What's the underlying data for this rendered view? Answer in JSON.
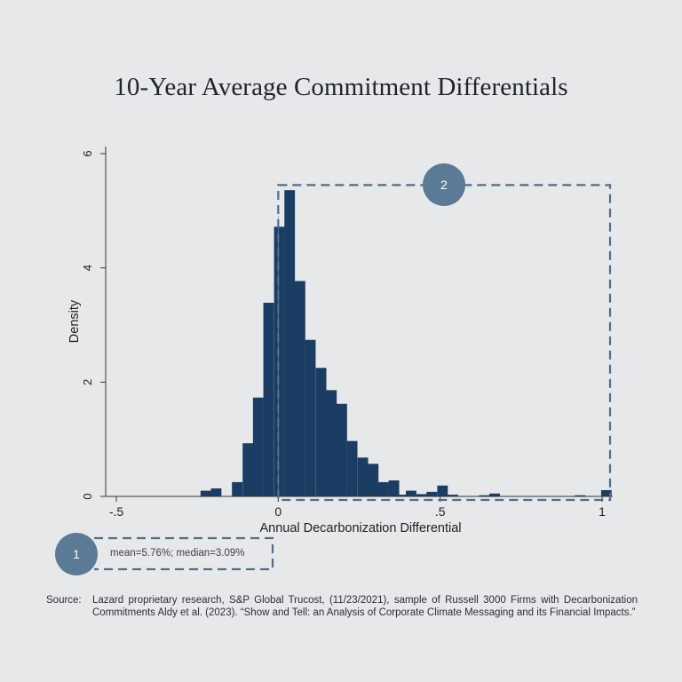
{
  "title": "10-Year Average Commitment Differentials",
  "annotations": {
    "badge_1": "1",
    "badge_2": "2",
    "stats_text": "mean=5.76%; median=3.09%"
  },
  "source": {
    "label": "Source:",
    "text": "Lazard proprietary research, S&P Global Trucost, (11/23/2021), sample of Russell 3000 Firms with Decarbonization Commitments Aldy et al. (2023). “Show and Tell: an Analysis of Corporate Climate Messaging and its Financial Impacts.”"
  },
  "colors": {
    "bar": "#1b3d63",
    "badge": "#5b7a96",
    "dash": "#4f6e8c",
    "background": "#e7e8ea"
  },
  "chart_data": {
    "type": "bar",
    "subtype": "histogram",
    "xlabel": "Annual Decarbonization Differential",
    "ylabel": "Density",
    "xlim": [
      -0.5,
      1.03
    ],
    "ylim": [
      0,
      6
    ],
    "x_ticks": [
      {
        "value": -0.5,
        "label": "-.5"
      },
      {
        "value": 0,
        "label": "0"
      },
      {
        "value": 0.5,
        "label": ".5"
      },
      {
        "value": 1,
        "label": "1"
      }
    ],
    "y_ticks": [
      {
        "value": 0,
        "label": "0"
      },
      {
        "value": 2,
        "label": "2"
      },
      {
        "value": 4,
        "label": "4"
      },
      {
        "value": 6,
        "label": "6"
      }
    ],
    "bin_width": 0.0325,
    "bins": [
      {
        "x0": -0.24,
        "value": 0.1
      },
      {
        "x0": -0.208,
        "value": 0.14
      },
      {
        "x0": -0.143,
        "value": 0.25
      },
      {
        "x0": -0.11,
        "value": 0.93
      },
      {
        "x0": -0.078,
        "value": 1.73
      },
      {
        "x0": -0.046,
        "value": 3.39
      },
      {
        "x0": -0.013,
        "value": 4.72
      },
      {
        "x0": 0.019,
        "value": 5.36
      },
      {
        "x0": 0.051,
        "value": 3.77
      },
      {
        "x0": 0.083,
        "value": 2.74
      },
      {
        "x0": 0.116,
        "value": 2.25
      },
      {
        "x0": 0.148,
        "value": 1.86
      },
      {
        "x0": 0.18,
        "value": 1.62
      },
      {
        "x0": 0.212,
        "value": 0.97
      },
      {
        "x0": 0.245,
        "value": 0.68
      },
      {
        "x0": 0.277,
        "value": 0.57
      },
      {
        "x0": 0.309,
        "value": 0.25
      },
      {
        "x0": 0.341,
        "value": 0.28
      },
      {
        "x0": 0.373,
        "value": 0.03
      },
      {
        "x0": 0.394,
        "value": 0.1
      },
      {
        "x0": 0.426,
        "value": 0.04
      },
      {
        "x0": 0.458,
        "value": 0.08
      },
      {
        "x0": 0.491,
        "value": 0.19
      },
      {
        "x0": 0.523,
        "value": 0.03
      },
      {
        "x0": 0.62,
        "value": 0.02
      },
      {
        "x0": 0.652,
        "value": 0.05
      },
      {
        "x0": 0.916,
        "value": 0.02
      },
      {
        "x0": 0.997,
        "value": 0.11
      }
    ],
    "highlight_box_2": {
      "x0": 0,
      "x1": 1.03,
      "y0": 0,
      "y1": 5.45
    }
  }
}
